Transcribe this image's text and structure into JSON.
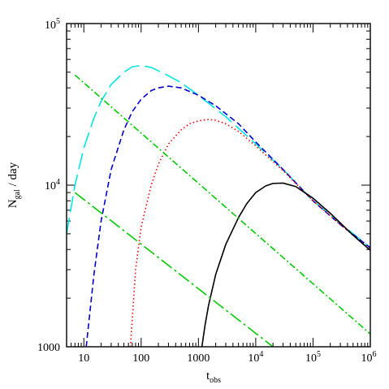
{
  "chart_data": {
    "type": "line",
    "xlabel": "t",
    "xlabel_sub": "obs",
    "ylabel": "N",
    "ylabel_sub": "gal",
    "ylabel_suffix": " / day",
    "xscale": "log",
    "yscale": "log",
    "xlim": [
      5,
      1000000
    ],
    "ylim": [
      1000,
      100000
    ],
    "grid": false,
    "legend": "none",
    "x_ticks": [
      {
        "value": 10,
        "label": "10"
      },
      {
        "value": 100,
        "label": "100"
      },
      {
        "value": 1000,
        "label": "1000"
      },
      {
        "value": 10000,
        "label": "10",
        "sup": "4"
      },
      {
        "value": 100000,
        "label": "10",
        "sup": "5"
      },
      {
        "value": 1000000,
        "label": "10",
        "sup": "6"
      }
    ],
    "y_ticks": [
      {
        "value": 1000,
        "label": "1000"
      },
      {
        "value": 10000,
        "label": "10",
        "sup": "4"
      },
      {
        "value": 100000,
        "label": "10",
        "sup": "5"
      }
    ],
    "series": [
      {
        "color": "#00e5e5",
        "dash": "long-dash",
        "x": [
          5,
          7,
          10,
          15,
          20,
          30,
          50,
          70,
          100,
          150,
          200,
          300,
          500,
          1000,
          3000,
          10000,
          30000,
          100000,
          300000,
          1000000
        ],
        "y": [
          5000,
          10000,
          17000,
          26000,
          33000,
          42000,
          50000,
          54000,
          55000,
          53500,
          51000,
          47500,
          43000,
          36000,
          26500,
          18000,
          12500,
          8000,
          5800,
          4100
        ]
      },
      {
        "color": "#0000cc",
        "dash": "dash",
        "x": [
          11,
          15,
          20,
          30,
          50,
          70,
          100,
          150,
          200,
          300,
          500,
          1000,
          2000,
          5000,
          10000,
          30000,
          100000,
          300000,
          1000000
        ],
        "y": [
          1000,
          2800,
          6000,
          12500,
          22000,
          28500,
          34000,
          38500,
          40000,
          41000,
          40000,
          36000,
          31000,
          24000,
          18500,
          12500,
          8000,
          5700,
          4100
        ]
      },
      {
        "color": "#ff0000",
        "dash": "dot",
        "x": [
          65,
          80,
          100,
          150,
          200,
          300,
          500,
          700,
          1000,
          1500,
          2000,
          3000,
          5000,
          10000,
          30000,
          100000,
          300000,
          1000000
        ],
        "y": [
          1000,
          3000,
          5500,
          10000,
          13500,
          18000,
          22000,
          24000,
          25000,
          25500,
          25200,
          24000,
          21500,
          17500,
          12300,
          8000,
          5700,
          4000
        ]
      },
      {
        "color": "#000000",
        "dash": "solid",
        "x": [
          1150,
          1300,
          1500,
          2000,
          3000,
          5000,
          7000,
          10000,
          15000,
          20000,
          30000,
          50000,
          100000,
          200000,
          500000,
          1000000
        ],
        "y": [
          1000,
          1350,
          1800,
          2800,
          4300,
          6300,
          7700,
          9000,
          9900,
          10250,
          10300,
          9800,
          8300,
          6700,
          4900,
          3950
        ]
      },
      {
        "color": "#00cc00",
        "dash": "dash-dot",
        "x": [
          7,
          1000000
        ],
        "y": [
          48000,
          1200
        ]
      },
      {
        "color": "#00cc00",
        "dash": "long-dash-dot",
        "x": [
          7,
          20000
        ],
        "y": [
          9000,
          1000
        ]
      }
    ]
  }
}
